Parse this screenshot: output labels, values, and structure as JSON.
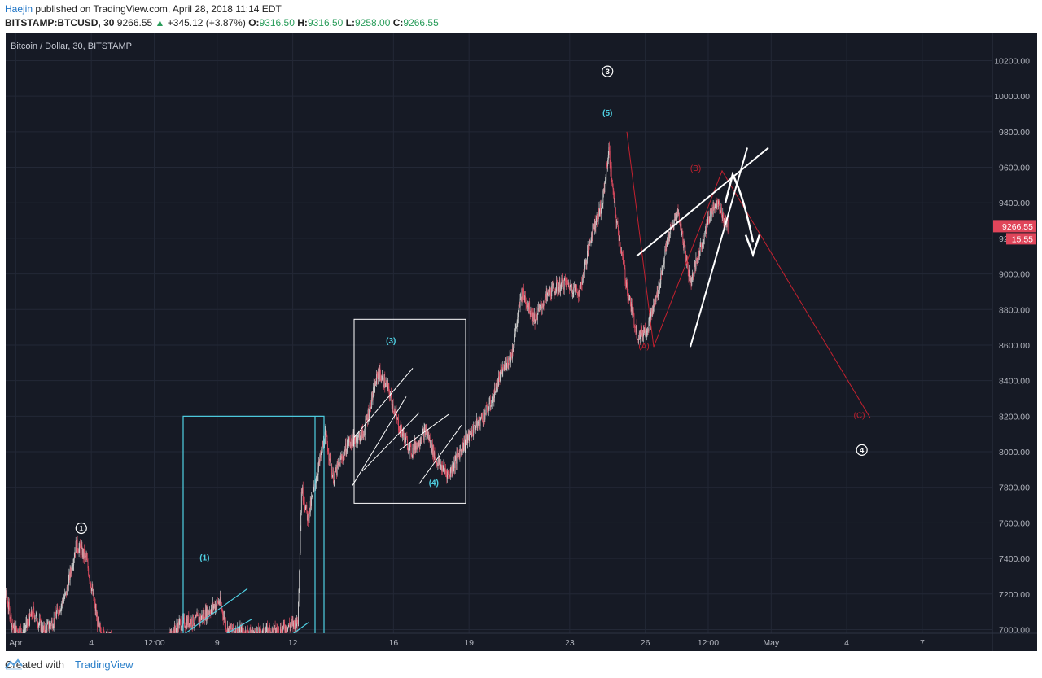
{
  "header": {
    "author": "Haejin",
    "published": " published on TradingView.com, April 28, 2018 11:14 EDT",
    "symbol": "BITSTAMP:BTCUSD, 30",
    "last": "9266.55",
    "change_arrow": "▲",
    "change": "+345.12 (+3.87%)",
    "o_label": "O:",
    "o_value": "9316.50",
    "h_label": "H:",
    "h_value": "9316.50",
    "l_label": "L:",
    "l_value": "9258.00",
    "c_label": "C:",
    "c_value": "9266.55"
  },
  "footer": {
    "created_with": "Created with",
    "brand": "TradingView"
  },
  "chart_data": {
    "type": "candlestick",
    "title": "Bitcoin / Dollar, 30, BITSTAMP",
    "ylim": [
      6950,
      10350
    ],
    "y_ticks": [
      7000,
      7200,
      7400,
      7600,
      7800,
      8000,
      8200,
      8400,
      8600,
      8800,
      9000,
      9200,
      9400,
      9600,
      9800,
      10000,
      10200
    ],
    "x_ticks": [
      {
        "label": "Apr",
        "day": 1.0
      },
      {
        "label": "4",
        "day": 4.0
      },
      {
        "label": "12:00",
        "day": 6.5
      },
      {
        "label": "9",
        "day": 9.0
      },
      {
        "label": "12",
        "day": 12.0
      },
      {
        "label": "16",
        "day": 16.0
      },
      {
        "label": "19",
        "day": 19.0
      },
      {
        "label": "23",
        "day": 23.0
      },
      {
        "label": "26",
        "day": 26.0
      },
      {
        "label": "12:00",
        "day": 28.5
      },
      {
        "label": "May",
        "day": 31.0
      },
      {
        "label": "4",
        "day": 34.0
      },
      {
        "label": "7",
        "day": 37.0
      }
    ],
    "price_path": [
      [
        0.2,
        7080
      ],
      [
        0.6,
        7200
      ],
      [
        0.9,
        7000
      ],
      [
        1.3,
        6990
      ],
      [
        1.7,
        7100
      ],
      [
        2.1,
        6990
      ],
      [
        2.5,
        7050
      ],
      [
        3.0,
        7200
      ],
      [
        3.4,
        7480
      ],
      [
        3.8,
        7400
      ],
      [
        4.3,
        7000
      ],
      [
        5.0,
        6900
      ],
      [
        6.5,
        6850
      ],
      [
        7.5,
        7030
      ],
      [
        8.3,
        7060
      ],
      [
        9.1,
        7160
      ],
      [
        9.4,
        7000
      ],
      [
        10.5,
        6970
      ],
      [
        11.5,
        7000
      ],
      [
        12.2,
        7040
      ],
      [
        12.35,
        7800
      ],
      [
        12.6,
        7620
      ],
      [
        13.0,
        7900
      ],
      [
        13.3,
        8100
      ],
      [
        13.6,
        7850
      ],
      [
        14.2,
        8050
      ],
      [
        14.8,
        8100
      ],
      [
        15.4,
        8450
      ],
      [
        15.8,
        8350
      ],
      [
        16.2,
        8150
      ],
      [
        16.7,
        8000
      ],
      [
        17.3,
        8120
      ],
      [
        17.7,
        7950
      ],
      [
        18.2,
        7870
      ],
      [
        18.7,
        8020
      ],
      [
        19.3,
        8150
      ],
      [
        19.8,
        8250
      ],
      [
        20.3,
        8450
      ],
      [
        20.7,
        8550
      ],
      [
        21.1,
        8900
      ],
      [
        21.6,
        8750
      ],
      [
        22.2,
        8900
      ],
      [
        22.8,
        8950
      ],
      [
        23.4,
        8900
      ],
      [
        23.9,
        9250
      ],
      [
        24.3,
        9400
      ],
      [
        24.55,
        9700
      ],
      [
        24.8,
        9350
      ],
      [
        25.3,
        8900
      ],
      [
        25.7,
        8650
      ],
      [
        26.1,
        8700
      ],
      [
        26.5,
        8900
      ],
      [
        26.9,
        9200
      ],
      [
        27.3,
        9350
      ],
      [
        27.8,
        8950
      ],
      [
        28.2,
        9150
      ],
      [
        28.6,
        9350
      ],
      [
        28.9,
        9420
      ],
      [
        29.1,
        9300
      ],
      [
        29.3,
        9266.55
      ]
    ],
    "last_price": "9266.55",
    "countdown": "15:55",
    "annotations": {
      "wave_major": [
        {
          "label": "1",
          "day": 3.6,
          "price": 7570
        },
        {
          "label": "3",
          "day": 24.5,
          "price": 10140
        },
        {
          "label": "4",
          "day": 34.6,
          "price": 8010
        }
      ],
      "wave_minor": [
        {
          "label": "(1)",
          "day": 8.5,
          "price": 7390
        },
        {
          "label": "(3)",
          "day": 15.9,
          "price": 8610
        },
        {
          "label": "(4)",
          "day": 17.6,
          "price": 7810
        },
        {
          "label": "(5)",
          "day": 24.5,
          "price": 9890
        }
      ],
      "correction": [
        {
          "label": "(A)",
          "day": 25.95,
          "price": 8580
        },
        {
          "label": "(B)",
          "day": 28.0,
          "price": 9580
        },
        {
          "label": "(C)",
          "day": 34.5,
          "price": 8190
        }
      ]
    },
    "colors": {
      "background": "#161a25",
      "up_candle": "#c9c9c9",
      "down_candle": "#d84a5e",
      "cyan": "#4fd0e3",
      "red_path": "#c4212f",
      "white_drawing": "#ffffff",
      "grid": "#232836"
    }
  }
}
